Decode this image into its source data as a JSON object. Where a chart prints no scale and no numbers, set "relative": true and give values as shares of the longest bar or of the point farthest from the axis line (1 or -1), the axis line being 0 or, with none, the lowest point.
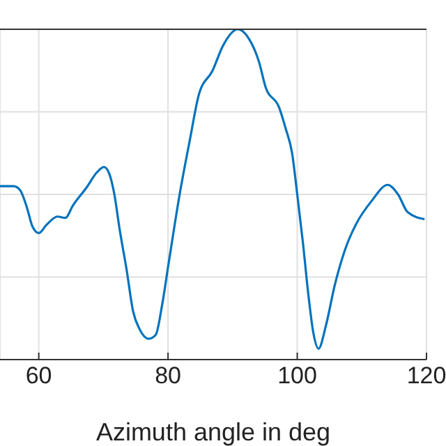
{
  "chart_data": {
    "type": "line",
    "xlabel": "Azimuth angle in deg",
    "relative": true,
    "xlim": [
      54,
      120
    ],
    "xticks": [
      60,
      80,
      100,
      120
    ],
    "grid": true,
    "marker": "none",
    "line_style": "solid",
    "series": [
      {
        "color": "#0072bd",
        "x": [
          54.0,
          56.1,
          57.1,
          58.2,
          59.0,
          60.0,
          61.2,
          62.9,
          64.1,
          65.3,
          67.4,
          69.0,
          70.1,
          70.9,
          71.7,
          72.5,
          73.6,
          74.6,
          75.6,
          77.0,
          78.1,
          79.1,
          80.1,
          81.8,
          83.4,
          84.8,
          86.9,
          88.5,
          90.8,
          92.4,
          94.1,
          95.1,
          97.2,
          98.2,
          99.2,
          100.0,
          100.9,
          101.7,
          102.5,
          103.3,
          104.4,
          105.8,
          107.4,
          109.1,
          111.5,
          114.0,
          115.6,
          117.1,
          119.7
        ],
        "values": [
          0.525,
          0.525,
          0.513,
          0.458,
          0.404,
          0.383,
          0.408,
          0.433,
          0.429,
          0.467,
          0.521,
          0.567,
          0.583,
          0.563,
          0.5,
          0.396,
          0.271,
          0.146,
          0.092,
          0.063,
          0.075,
          0.167,
          0.292,
          0.5,
          0.667,
          0.804,
          0.875,
          0.95,
          1.0,
          0.975,
          0.9,
          0.825,
          0.763,
          0.7,
          0.625,
          0.5,
          0.35,
          0.2,
          0.08,
          0.033,
          0.1,
          0.225,
          0.333,
          0.41,
          0.48,
          0.529,
          0.5,
          0.446,
          0.425
        ]
      }
    ]
  }
}
